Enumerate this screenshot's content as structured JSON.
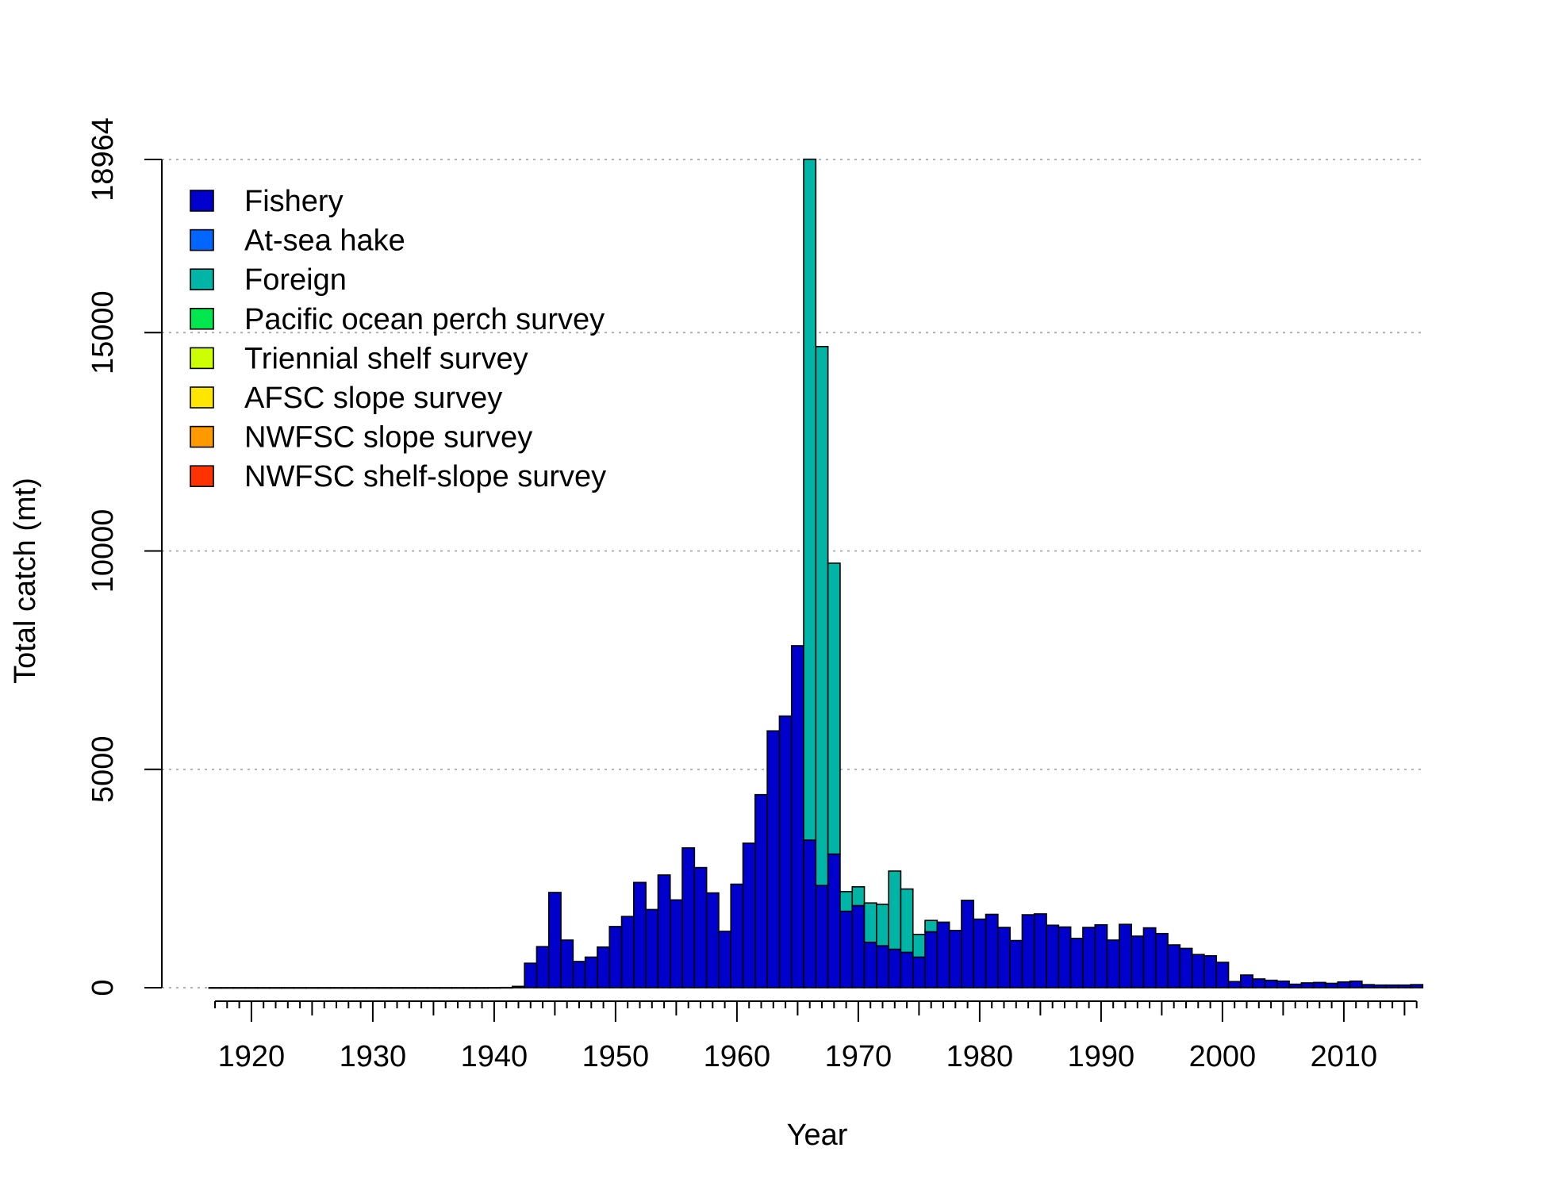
{
  "chart_data": {
    "type": "bar",
    "stacked": true,
    "xlabel": "Year",
    "ylabel": "Total catch (mt)",
    "xlim": [
      1917,
      2016
    ],
    "ylim": [
      0,
      18964
    ],
    "x_ticks": [
      "1920",
      "1930",
      "1940",
      "1950",
      "1960",
      "1970",
      "1980",
      "1990",
      "2000",
      "2010"
    ],
    "y_ticks": [
      "0",
      "5000",
      "10000",
      "15000",
      "18964"
    ],
    "grid": "horizontal dotted",
    "legend_position": "top-left",
    "legend": [
      {
        "name": "Fishery",
        "color": "#0000CC"
      },
      {
        "name": "At-sea hake",
        "color": "#0066FF"
      },
      {
        "name": "Foreign",
        "color": "#00B5A6"
      },
      {
        "name": "Pacific ocean perch survey",
        "color": "#00E64D"
      },
      {
        "name": "Triennial shelf survey",
        "color": "#CCFF00"
      },
      {
        "name": "AFSC slope survey",
        "color": "#FFE600"
      },
      {
        "name": "NWFSC slope survey",
        "color": "#FF9900"
      },
      {
        "name": "NWFSC shelf-slope survey",
        "color": "#FF3300"
      }
    ],
    "years": [
      1917,
      1918,
      1919,
      1920,
      1921,
      1922,
      1923,
      1924,
      1925,
      1926,
      1927,
      1928,
      1929,
      1930,
      1931,
      1932,
      1933,
      1934,
      1935,
      1936,
      1937,
      1938,
      1939,
      1940,
      1941,
      1942,
      1943,
      1944,
      1945,
      1946,
      1947,
      1948,
      1949,
      1950,
      1951,
      1952,
      1953,
      1954,
      1955,
      1956,
      1957,
      1958,
      1959,
      1960,
      1961,
      1962,
      1963,
      1964,
      1965,
      1966,
      1967,
      1968,
      1969,
      1970,
      1971,
      1972,
      1973,
      1974,
      1975,
      1976,
      1977,
      1978,
      1979,
      1980,
      1981,
      1982,
      1983,
      1984,
      1985,
      1986,
      1987,
      1988,
      1989,
      1990,
      1991,
      1992,
      1993,
      1994,
      1995,
      1996,
      1997,
      1998,
      1999,
      2000,
      2001,
      2002,
      2003,
      2004,
      2005,
      2006,
      2007,
      2008,
      2009,
      2010,
      2011,
      2012,
      2013,
      2014,
      2015,
      2016
    ],
    "series": [
      {
        "name": "Fishery",
        "values": [
          1,
          1,
          1,
          1,
          1,
          1,
          1,
          1,
          1,
          1,
          1,
          1,
          1,
          1,
          1,
          1,
          1,
          1,
          1,
          1,
          1,
          1,
          1,
          3,
          5,
          30,
          560,
          940,
          2180,
          1090,
          600,
          700,
          930,
          1400,
          1630,
          2410,
          1790,
          2580,
          2010,
          3200,
          2750,
          2170,
          1290,
          2370,
          3310,
          4420,
          5880,
          6220,
          7830,
          3380,
          2340,
          3060,
          1750,
          1880,
          1040,
          960,
          880,
          810,
          700,
          1280,
          1500,
          1310,
          2000,
          1570,
          1680,
          1380,
          1080,
          1670,
          1690,
          1430,
          1390,
          1130,
          1380,
          1440,
          1090,
          1450,
          1180,
          1370,
          1240,
          980,
          900,
          760,
          730,
          580,
          140,
          290,
          200,
          170,
          150,
          80,
          110,
          120,
          100,
          130,
          150,
          70,
          60,
          60,
          60,
          70
        ]
      },
      {
        "name": "At-sea hake",
        "values": [
          0,
          0,
          0,
          0,
          0,
          0,
          0,
          0,
          0,
          0,
          0,
          0,
          0,
          0,
          0,
          0,
          0,
          0,
          0,
          0,
          0,
          0,
          0,
          0,
          0,
          0,
          0,
          0,
          0,
          0,
          0,
          0,
          0,
          0,
          0,
          0,
          0,
          0,
          0,
          0,
          0,
          0,
          0,
          0,
          0,
          0,
          0,
          0,
          0,
          0,
          0,
          0,
          0,
          0,
          0,
          0,
          0,
          0,
          0,
          0,
          0,
          0,
          0,
          0,
          0,
          0,
          0,
          0,
          0,
          0,
          0,
          0,
          0,
          0,
          0,
          0,
          0,
          0,
          0,
          0,
          0,
          0,
          0,
          0,
          0,
          0,
          0,
          0,
          0,
          0,
          0,
          0,
          0,
          0,
          0,
          0,
          0,
          0,
          0,
          0
        ]
      },
      {
        "name": "Foreign",
        "values": [
          0,
          0,
          0,
          0,
          0,
          0,
          0,
          0,
          0,
          0,
          0,
          0,
          0,
          0,
          0,
          0,
          0,
          0,
          0,
          0,
          0,
          0,
          0,
          0,
          0,
          0,
          0,
          0,
          0,
          0,
          0,
          0,
          0,
          0,
          0,
          0,
          0,
          0,
          0,
          0,
          0,
          0,
          0,
          0,
          0,
          0,
          0,
          0,
          0,
          15590,
          12340,
          6660,
          450,
          430,
          900,
          950,
          1790,
          1450,
          520,
          260,
          0,
          0,
          0,
          0,
          0,
          0,
          0,
          0,
          0,
          0,
          0,
          0,
          0,
          0,
          0,
          0,
          0,
          0,
          0,
          0,
          0,
          0,
          0,
          0,
          0,
          0,
          0,
          0,
          0,
          0,
          0,
          0,
          0,
          0,
          0,
          0,
          0,
          0,
          0,
          0
        ]
      },
      {
        "name": "Pacific ocean perch survey",
        "values": [
          0,
          0,
          0,
          0,
          0,
          0,
          0,
          0,
          0,
          0,
          0,
          0,
          0,
          0,
          0,
          0,
          0,
          0,
          0,
          0,
          0,
          0,
          0,
          0,
          0,
          0,
          0,
          0,
          0,
          0,
          0,
          0,
          0,
          0,
          0,
          0,
          0,
          0,
          0,
          0,
          0,
          0,
          0,
          0,
          0,
          0,
          0,
          0,
          0,
          0,
          0,
          0,
          0,
          0,
          0,
          0,
          0,
          0,
          0,
          0,
          0,
          0,
          0,
          0,
          0,
          0,
          0,
          0,
          0,
          0,
          0,
          0,
          0,
          0,
          0,
          0,
          0,
          0,
          0,
          0,
          0,
          0,
          0,
          0,
          0,
          0,
          0,
          0,
          0,
          0,
          0,
          0,
          0,
          0,
          0,
          0,
          0,
          0,
          0,
          0
        ]
      },
      {
        "name": "Triennial shelf survey",
        "values": [
          0,
          0,
          0,
          0,
          0,
          0,
          0,
          0,
          0,
          0,
          0,
          0,
          0,
          0,
          0,
          0,
          0,
          0,
          0,
          0,
          0,
          0,
          0,
          0,
          0,
          0,
          0,
          0,
          0,
          0,
          0,
          0,
          0,
          0,
          0,
          0,
          0,
          0,
          0,
          0,
          0,
          0,
          0,
          0,
          0,
          0,
          0,
          0,
          0,
          0,
          0,
          0,
          0,
          0,
          0,
          0,
          0,
          0,
          0,
          0,
          0,
          0,
          0,
          0,
          0,
          0,
          0,
          0,
          0,
          0,
          0,
          0,
          0,
          0,
          0,
          0,
          0,
          0,
          0,
          0,
          0,
          0,
          0,
          0,
          0,
          0,
          0,
          0,
          0,
          0,
          0,
          0,
          0,
          0,
          0,
          0,
          0,
          0,
          0,
          0
        ]
      },
      {
        "name": "AFSC slope survey",
        "values": [
          0,
          0,
          0,
          0,
          0,
          0,
          0,
          0,
          0,
          0,
          0,
          0,
          0,
          0,
          0,
          0,
          0,
          0,
          0,
          0,
          0,
          0,
          0,
          0,
          0,
          0,
          0,
          0,
          0,
          0,
          0,
          0,
          0,
          0,
          0,
          0,
          0,
          0,
          0,
          0,
          0,
          0,
          0,
          0,
          0,
          0,
          0,
          0,
          0,
          0,
          0,
          0,
          0,
          0,
          0,
          0,
          0,
          0,
          0,
          0,
          0,
          0,
          0,
          0,
          0,
          0,
          0,
          0,
          0,
          0,
          0,
          0,
          0,
          0,
          0,
          0,
          0,
          0,
          0,
          0,
          0,
          0,
          0,
          0,
          0,
          0,
          0,
          0,
          0,
          0,
          0,
          0,
          0,
          0,
          0,
          0,
          0,
          0,
          0,
          0
        ]
      },
      {
        "name": "NWFSC slope survey",
        "values": [
          0,
          0,
          0,
          0,
          0,
          0,
          0,
          0,
          0,
          0,
          0,
          0,
          0,
          0,
          0,
          0,
          0,
          0,
          0,
          0,
          0,
          0,
          0,
          0,
          0,
          0,
          0,
          0,
          0,
          0,
          0,
          0,
          0,
          0,
          0,
          0,
          0,
          0,
          0,
          0,
          0,
          0,
          0,
          0,
          0,
          0,
          0,
          0,
          0,
          0,
          0,
          0,
          0,
          0,
          0,
          0,
          0,
          0,
          0,
          0,
          0,
          0,
          0,
          0,
          0,
          0,
          0,
          0,
          0,
          0,
          0,
          0,
          0,
          0,
          0,
          0,
          0,
          0,
          0,
          0,
          0,
          0,
          0,
          0,
          0,
          0,
          0,
          0,
          0,
          0,
          0,
          0,
          0,
          0,
          0,
          0,
          0,
          0,
          0,
          0
        ]
      },
      {
        "name": "NWFSC shelf-slope survey",
        "values": [
          0,
          0,
          0,
          0,
          0,
          0,
          0,
          0,
          0,
          0,
          0,
          0,
          0,
          0,
          0,
          0,
          0,
          0,
          0,
          0,
          0,
          0,
          0,
          0,
          0,
          0,
          0,
          0,
          0,
          0,
          0,
          0,
          0,
          0,
          0,
          0,
          0,
          0,
          0,
          0,
          0,
          0,
          0,
          0,
          0,
          0,
          0,
          0,
          0,
          0,
          0,
          0,
          0,
          0,
          0,
          0,
          0,
          0,
          0,
          0,
          0,
          0,
          0,
          0,
          0,
          0,
          0,
          0,
          0,
          0,
          0,
          0,
          0,
          0,
          0,
          0,
          0,
          0,
          0,
          0,
          0,
          0,
          0,
          0,
          0,
          0,
          0,
          0,
          0,
          0,
          0,
          0,
          0,
          0,
          0,
          0,
          0,
          0,
          0,
          0
        ]
      }
    ]
  }
}
